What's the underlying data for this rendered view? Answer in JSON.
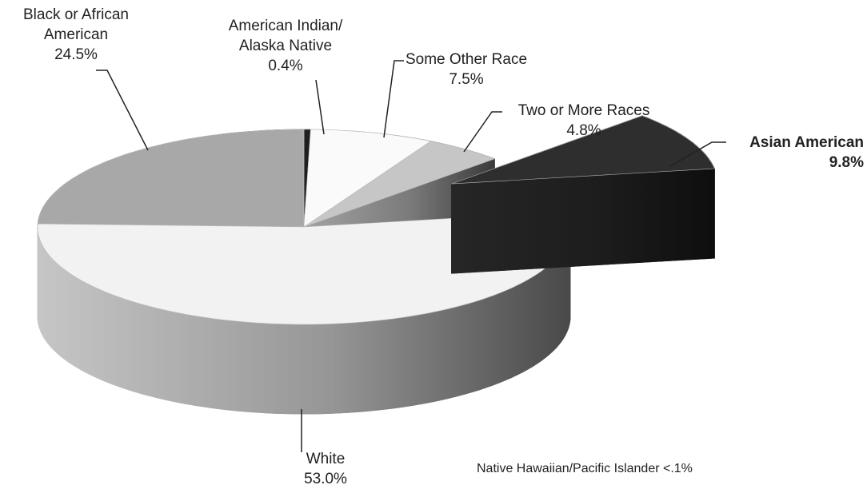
{
  "chart_data": {
    "type": "pie",
    "categories": [
      "American Indian/ Alaska Native",
      "Some Other Race",
      "Two or More Races",
      "Asian American",
      "White",
      "Black or African American"
    ],
    "values": [
      0.4,
      7.5,
      4.8,
      9.8,
      53.0,
      24.5
    ],
    "value_labels": [
      "0.4%",
      "7.5%",
      "4.8%",
      "9.8%",
      "53.0%",
      "24.5%"
    ],
    "colors": [
      "#1e1e1e",
      "#fafafa",
      "#c6c6c6",
      "#2e2e2e",
      "#f2f2f2",
      "#a8a8a8"
    ],
    "explode": [
      false,
      false,
      false,
      true,
      false,
      false
    ],
    "annotation": "Native Hawaiian/Pacific Islander <.1%"
  }
}
